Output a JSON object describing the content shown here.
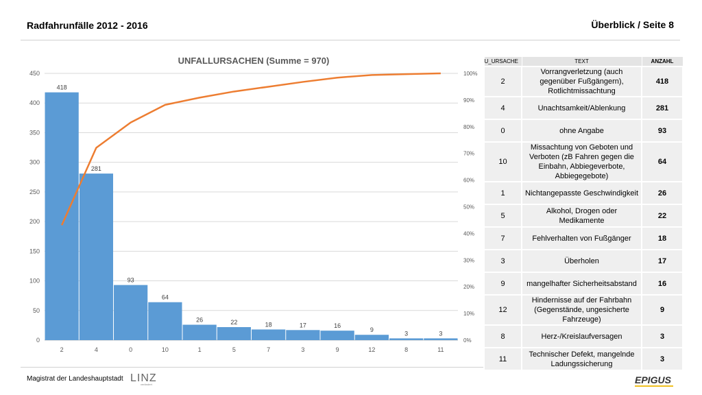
{
  "header": {
    "title": "Radfahrunfälle 2012 - 2016",
    "page": "Überblick / Seite 8"
  },
  "chart_data": {
    "type": "bar",
    "title": "UNFALLURSACHEN (Summe = 970)",
    "categories": [
      "2",
      "4",
      "0",
      "10",
      "1",
      "5",
      "7",
      "3",
      "9",
      "12",
      "8",
      "11"
    ],
    "values": [
      418,
      281,
      93,
      64,
      26,
      22,
      18,
      17,
      16,
      9,
      3,
      3
    ],
    "cumulative_percent": [
      43.1,
      72.1,
      81.6,
      88.2,
      90.9,
      93.2,
      95.0,
      96.8,
      98.4,
      99.4,
      99.7,
      100.0
    ],
    "ylim": [
      0,
      450
    ],
    "y_ticks": [
      "0",
      "50",
      "100",
      "150",
      "200",
      "250",
      "300",
      "350",
      "400",
      "450"
    ],
    "y2_ticks": [
      "0%",
      "10%",
      "20%",
      "30%",
      "40%",
      "50%",
      "60%",
      "70%",
      "80%",
      "90%",
      "100%"
    ],
    "bar_color": "#5b9bd5",
    "line_color": "#ed7d31",
    "grid": true
  },
  "table": {
    "headers": [
      "U_URSACHE",
      "TEXT",
      "ANZAHL"
    ],
    "rows": [
      {
        "code": "2",
        "text": "Vorrangverletzung (auch gegenüber Fußgängern), Rotlichtmissachtung",
        "count": "418"
      },
      {
        "code": "4",
        "text": "Unachtsamkeit/Ablenkung",
        "count": "281"
      },
      {
        "code": "0",
        "text": "ohne Angabe",
        "count": "93"
      },
      {
        "code": "10",
        "text": "Missachtung von Geboten und Verboten (zB Fahren gegen die Einbahn, Abbiegeverbote, Abbiegegebote)",
        "count": "64"
      },
      {
        "code": "1",
        "text": "Nichtangepasste Geschwindigkeit",
        "count": "26"
      },
      {
        "code": "5",
        "text": "Alkohol, Drogen oder Medikamente",
        "count": "22"
      },
      {
        "code": "7",
        "text": "Fehlverhalten von Fußgänger",
        "count": "18"
      },
      {
        "code": "3",
        "text": "Überholen",
        "count": "17"
      },
      {
        "code": "9",
        "text": "mangelhafter Sicherheitsabstand",
        "count": "16"
      },
      {
        "code": "12",
        "text": "Hindernisse auf der Fahrbahn (Gegenstände, ungesicherte Fahrzeuge)",
        "count": "9"
      },
      {
        "code": "8",
        "text": "Herz-/Kreislaufversagen",
        "count": "3"
      },
      {
        "code": "11",
        "text": "Technischer Defekt, mangelnde Ladungssicherung",
        "count": "3"
      }
    ]
  },
  "footer": {
    "text": "Magistrat der Landeshauptstadt",
    "logo_linz": "LINZ",
    "logo_linz_sub": "verändert",
    "logo_epigus": "EPIGUS"
  }
}
